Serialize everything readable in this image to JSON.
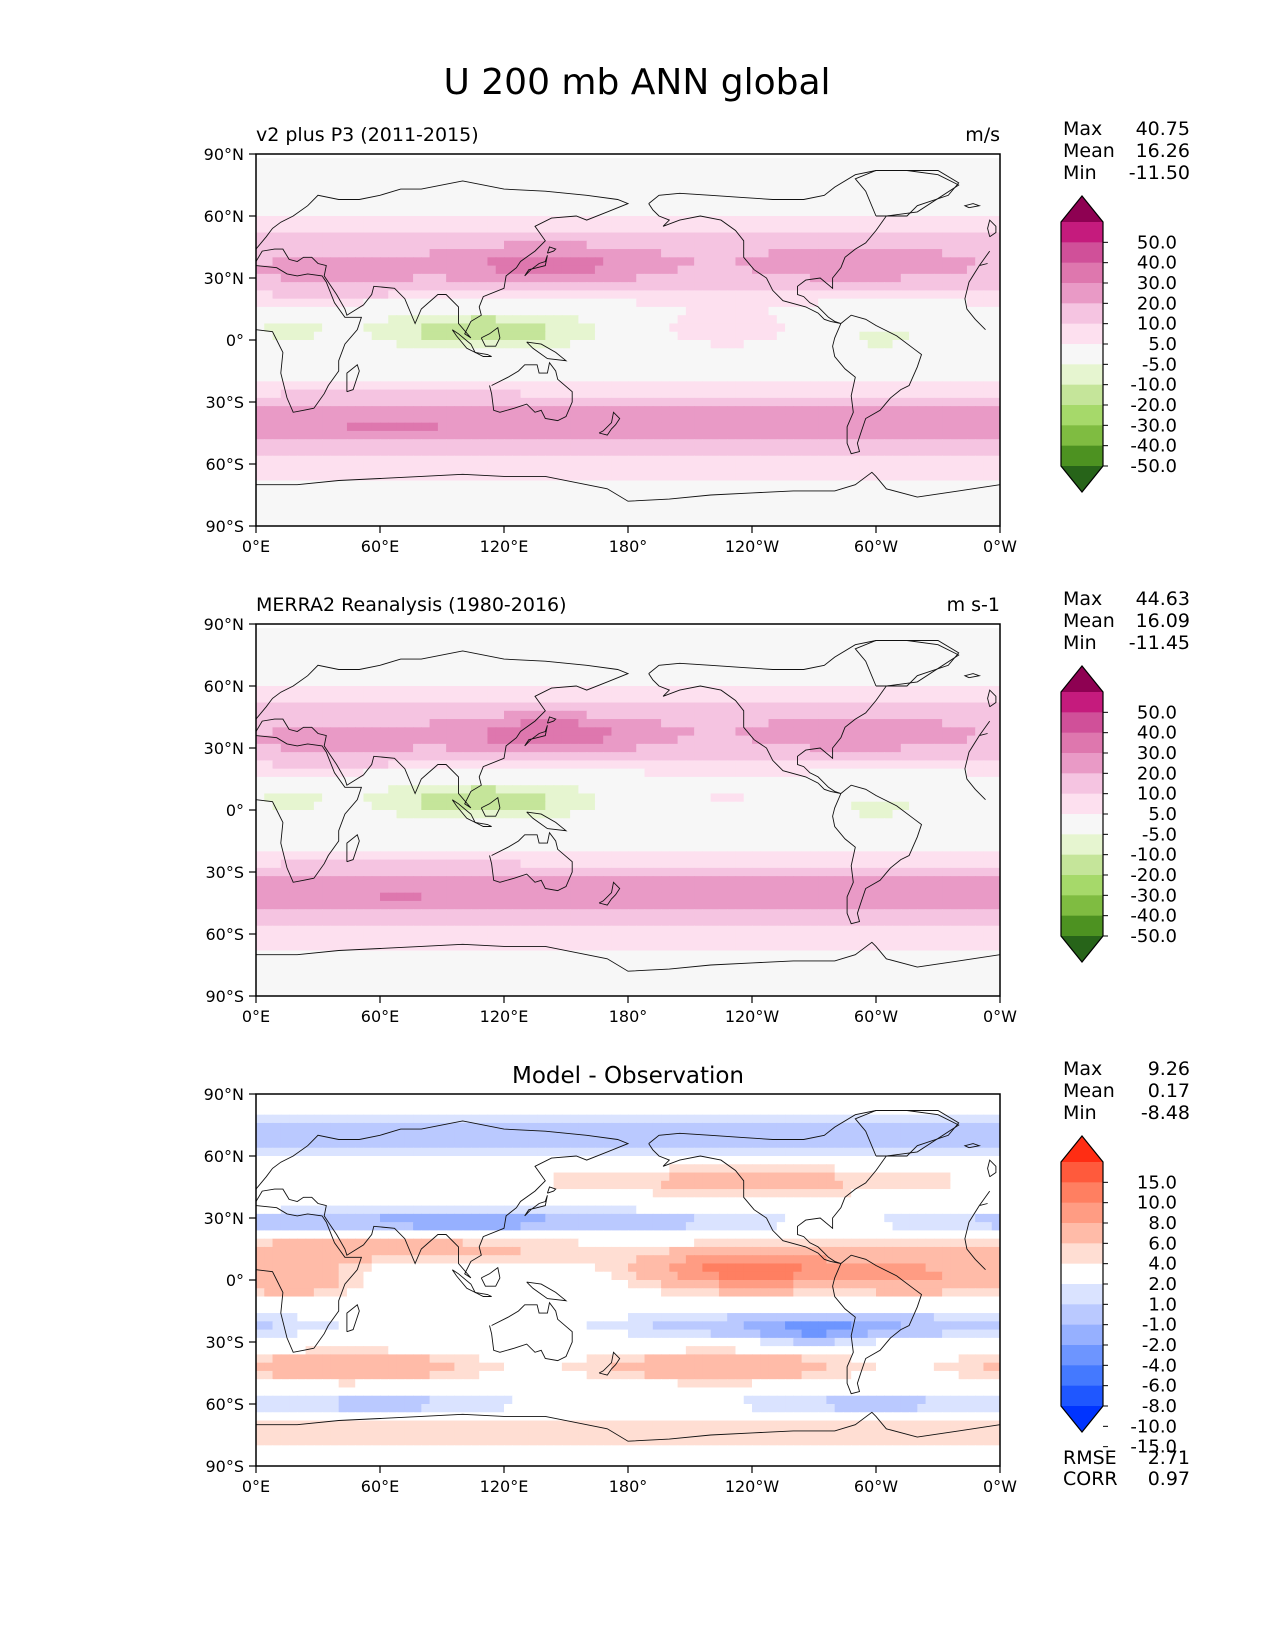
{
  "figure": {
    "title": "U 200 mb ANN global"
  },
  "colors": {
    "seq": [
      "#276419",
      "#4d9221",
      "#7fbc41",
      "#a6d96a",
      "#c5e59a",
      "#e6f5d0",
      "#f7f7f7",
      "#fde0ef",
      "#f5c4e1",
      "#e99ac6",
      "#de77ae",
      "#d05099",
      "#c51b7d",
      "#8e0152"
    ],
    "diff": [
      "#0034ff",
      "#1f57ff",
      "#4479ff",
      "#6d95ff",
      "#96b0ff",
      "#bac9ff",
      "#dae3ff",
      "#ffffff",
      "#ffded3",
      "#ffbba8",
      "#ff9c83",
      "#ff7f61",
      "#ff5a3c",
      "#ff2d13"
    ]
  },
  "chart_data": [
    {
      "type": "heatmap",
      "left_title": "v2 plus P3 (2011-2015)",
      "units": "m/s",
      "stats": [
        {
          "label": "Max",
          "value": "40.75"
        },
        {
          "label": "Mean",
          "value": "16.26"
        },
        {
          "label": "Min",
          "value": "-11.50"
        }
      ],
      "colorbar_ticks": [
        "50.0",
        "40.0",
        "30.0",
        "20.0",
        "10.0",
        "5.0",
        "-5.0",
        "-10.0",
        "-20.0",
        "-30.0",
        "-40.0",
        "-50.0"
      ],
      "levels": [
        -50,
        -40,
        -30,
        -20,
        -10,
        -5,
        5,
        10,
        20,
        30,
        40,
        50
      ],
      "palette": "seq",
      "xlim": [
        0,
        360
      ],
      "ylim": [
        -90,
        90
      ],
      "xticks": [
        "0°E",
        "60°E",
        "120°E",
        "180°",
        "120°W",
        "60°W",
        "0°W"
      ],
      "yticks": [
        "90°N",
        "60°N",
        "30°N",
        "0°",
        "30°S",
        "60°S",
        "90°S"
      ]
    },
    {
      "type": "heatmap",
      "left_title": "MERRA2 Reanalysis (1980-2016)",
      "units": "m s-1",
      "stats": [
        {
          "label": "Max",
          "value": "44.63"
        },
        {
          "label": "Mean",
          "value": "16.09"
        },
        {
          "label": "Min",
          "value": "-11.45"
        }
      ],
      "colorbar_ticks": [
        "50.0",
        "40.0",
        "30.0",
        "20.0",
        "10.0",
        "5.0",
        "-5.0",
        "-10.0",
        "-20.0",
        "-30.0",
        "-40.0",
        "-50.0"
      ],
      "levels": [
        -50,
        -40,
        -30,
        -20,
        -10,
        -5,
        5,
        10,
        20,
        30,
        40,
        50
      ],
      "palette": "seq",
      "xlim": [
        0,
        360
      ],
      "ylim": [
        -90,
        90
      ],
      "xticks": [
        "0°E",
        "60°E",
        "120°E",
        "180°",
        "120°W",
        "60°W",
        "0°W"
      ],
      "yticks": [
        "90°N",
        "60°N",
        "30°N",
        "0°",
        "30°S",
        "60°S",
        "90°S"
      ]
    },
    {
      "type": "heatmap",
      "title": "Model - Observation",
      "stats": [
        {
          "label": "Max",
          "value": "9.26"
        },
        {
          "label": "Mean",
          "value": "0.17"
        },
        {
          "label": "Min",
          "value": "-8.48"
        }
      ],
      "extra_stats": [
        {
          "label": "RMSE",
          "value": "2.71"
        },
        {
          "label": "CORR",
          "value": "0.97"
        }
      ],
      "colorbar_ticks": [
        "15.0",
        "10.0",
        "8.0",
        "6.0",
        "4.0",
        "2.0",
        "1.0",
        "-1.0",
        "-2.0",
        "-4.0",
        "-6.0",
        "-8.0",
        "-10.0",
        "-15.0"
      ],
      "levels": [
        -15,
        -10,
        -8,
        -6,
        -4,
        -2,
        -1,
        1,
        2,
        4,
        6,
        8,
        10,
        15
      ],
      "palette": "diff",
      "xlim": [
        0,
        360
      ],
      "ylim": [
        -90,
        90
      ],
      "xticks": [
        "0°E",
        "60°E",
        "120°E",
        "180°",
        "120°W",
        "60°W",
        "0°W"
      ],
      "yticks": [
        "90°N",
        "60°N",
        "30°N",
        "0°",
        "30°S",
        "60°S",
        "90°S"
      ]
    }
  ]
}
